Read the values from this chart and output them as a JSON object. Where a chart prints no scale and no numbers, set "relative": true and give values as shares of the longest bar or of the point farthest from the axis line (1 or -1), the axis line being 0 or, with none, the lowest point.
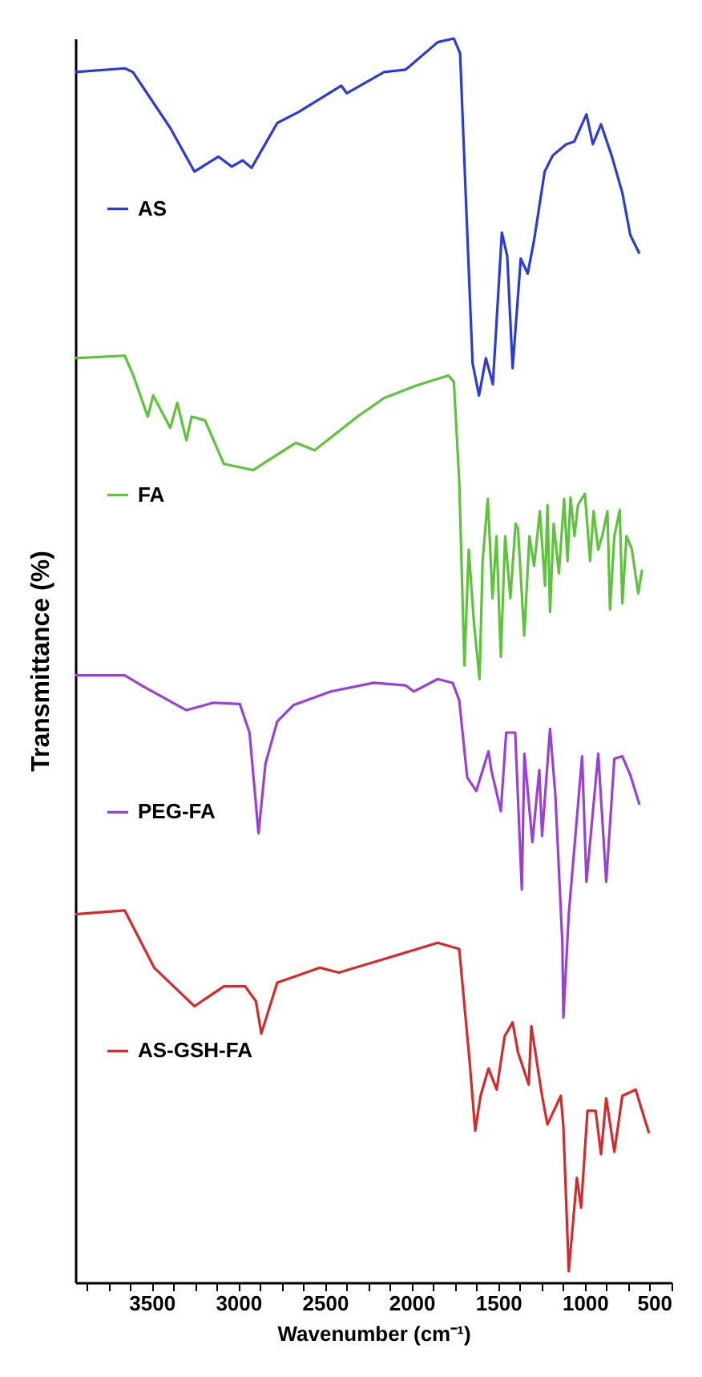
{
  "chart_data": {
    "type": "line",
    "relative": true,
    "xlabel": "Wavenumber (cm⁻¹)",
    "ylabel": "Transmittance (%)",
    "legend": "left",
    "xlim": [
      3940,
      500
    ],
    "xticks": [
      {
        "value": 3875,
        "label": null
      },
      {
        "value": 3750,
        "label": null
      },
      {
        "value": 3625,
        "label": null
      },
      3500,
      {
        "value": 3375,
        "label": null
      },
      {
        "value": 3250,
        "label": null
      },
      {
        "value": 3125,
        "label": null
      },
      3000,
      {
        "value": 2875,
        "label": null
      },
      {
        "value": 2750,
        "label": null
      },
      {
        "value": 2625,
        "label": null
      },
      2500,
      {
        "value": 2375,
        "label": null
      },
      {
        "value": 2250,
        "label": null
      },
      {
        "value": 2125,
        "label": null
      },
      2000,
      {
        "value": 1875,
        "label": null
      },
      {
        "value": 1750,
        "label": null
      },
      {
        "value": 1625,
        "label": null
      },
      1500,
      {
        "value": 1375,
        "label": null
      },
      {
        "value": 1250,
        "label": null
      },
      {
        "value": 1125,
        "label": null
      },
      1000,
      {
        "value": 875,
        "label": null
      },
      {
        "value": 750,
        "label": null
      },
      {
        "value": 625,
        "label": null
      },
      500
    ],
    "series": [
      {
        "name": "AS",
        "color": "#2a3bd6",
        "x": [
          3940,
          3655,
          3608,
          3392,
          3253,
          3114,
          3037,
          2975,
          2923,
          2775,
          2651,
          2405,
          2374,
          2158,
          2034,
          1849,
          1756,
          1720,
          1688,
          1648,
          1611,
          1571,
          1531,
          1479,
          1448,
          1417,
          1370,
          1330,
          1293,
          1232,
          1185,
          1108,
          1062,
          991,
          954,
          907,
          846,
          784,
          738,
          685
        ],
        "values": [
          0.973,
          0.976,
          0.973,
          0.928,
          0.893,
          0.905,
          0.897,
          0.902,
          0.896,
          0.932,
          0.941,
          0.962,
          0.956,
          0.973,
          0.975,
          0.997,
          1.0,
          0.988,
          0.876,
          0.739,
          0.713,
          0.743,
          0.722,
          0.844,
          0.825,
          0.735,
          0.823,
          0.811,
          0.838,
          0.893,
          0.906,
          0.915,
          0.917,
          0.939,
          0.915,
          0.931,
          0.906,
          0.876,
          0.842,
          0.827
        ]
      },
      {
        "name": "FA",
        "color": "#5cc43a",
        "x": [
          3940,
          3655,
          3608,
          3522,
          3491,
          3392,
          3352,
          3299,
          3269,
          3192,
          3083,
          2914,
          2836,
          2667,
          2559,
          2312,
          2158,
          1972,
          1787,
          1756,
          1725,
          1695,
          1670,
          1640,
          1608,
          1590,
          1560,
          1533,
          1510,
          1485,
          1460,
          1430,
          1400,
          1386,
          1350,
          1320,
          1293,
          1260,
          1230,
          1216,
          1201,
          1180,
          1150,
          1120,
          1100,
          1083,
          1060,
          1040,
          1000,
          970,
          950,
          923,
          900,
          870,
          855,
          830,
          799,
          784,
          760,
          730,
          692,
          670
        ],
        "values": [
          0.743,
          0.745,
          0.73,
          0.696,
          0.713,
          0.687,
          0.707,
          0.677,
          0.696,
          0.693,
          0.658,
          0.653,
          0.66,
          0.675,
          0.669,
          0.696,
          0.711,
          0.721,
          0.729,
          0.724,
          0.644,
          0.496,
          0.589,
          0.53,
          0.485,
          0.58,
          0.63,
          0.55,
          0.6,
          0.503,
          0.6,
          0.55,
          0.61,
          0.606,
          0.52,
          0.6,
          0.576,
          0.62,
          0.56,
          0.625,
          0.539,
          0.61,
          0.57,
          0.63,
          0.58,
          0.631,
          0.6,
          0.625,
          0.634,
          0.58,
          0.62,
          0.589,
          0.6,
          0.62,
          0.541,
          0.6,
          0.621,
          0.546,
          0.6,
          0.59,
          0.554,
          0.573
        ]
      },
      {
        "name": "PEG-FA",
        "color": "#9b3fd9",
        "x": [
          3940,
          3655,
          3546,
          3299,
          3145,
          2991,
          2935,
          2883,
          2843,
          2775,
          2682,
          2466,
          2219,
          2034,
          1988,
          1849,
          1763,
          1725,
          1679,
          1627,
          1556,
          1540,
          1485,
          1454,
          1402,
          1364,
          1349,
          1303,
          1263,
          1247,
          1201,
          1170,
          1130,
          1124,
          1093,
          1016,
          991,
          923,
          877,
          830,
          784,
          738,
          685
        ],
        "values": [
          0.488,
          0.488,
          0.479,
          0.46,
          0.466,
          0.465,
          0.442,
          0.361,
          0.417,
          0.451,
          0.464,
          0.475,
          0.482,
          0.48,
          0.475,
          0.485,
          0.482,
          0.468,
          0.406,
          0.395,
          0.427,
          0.412,
          0.379,
          0.442,
          0.442,
          0.316,
          0.425,
          0.354,
          0.412,
          0.359,
          0.445,
          0.391,
          0.273,
          0.213,
          0.296,
          0.423,
          0.322,
          0.425,
          0.322,
          0.421,
          0.423,
          0.408,
          0.384
        ]
      },
      {
        "name": "AS-GSH-FA",
        "color": "#d62a2a",
        "x": [
          3940,
          3655,
          3485,
          3253,
          3083,
          2960,
          2898,
          2867,
          2775,
          2528,
          2420,
          2158,
          1849,
          1725,
          1664,
          1633,
          1602,
          1556,
          1509,
          1463,
          1417,
          1386,
          1324,
          1309,
          1247,
          1216,
          1139,
          1124,
          1093,
          1046,
          1022,
          985,
          938,
          907,
          877,
          830,
          784,
          707,
          670,
          630
        ],
        "values": [
          0.296,
          0.299,
          0.253,
          0.222,
          0.238,
          0.238,
          0.226,
          0.2,
          0.241,
          0.253,
          0.249,
          0.26,
          0.273,
          0.268,
          0.176,
          0.122,
          0.15,
          0.172,
          0.155,
          0.198,
          0.209,
          0.185,
          0.159,
          0.206,
          0.15,
          0.127,
          0.15,
          0.125,
          0.009,
          0.084,
          0.06,
          0.138,
          0.138,
          0.103,
          0.148,
          0.105,
          0.15,
          0.155,
          0.138,
          0.12
        ]
      }
    ]
  }
}
